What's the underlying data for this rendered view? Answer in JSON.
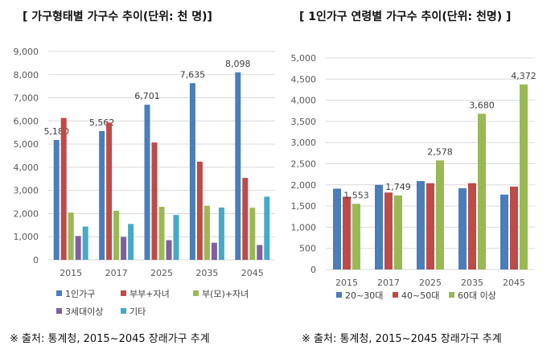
{
  "chart_data": [
    {
      "type": "bar",
      "title": "[ 가구형태별 가구수 추이(단위: 천 명)]",
      "categories": [
        "2015",
        "2017",
        "2025",
        "2035",
        "2045"
      ],
      "ylim": [
        0,
        9000
      ],
      "yticks": [
        "0",
        "1,000",
        "2,000",
        "3,000",
        "4,000",
        "5,000",
        "6,000",
        "7,000",
        "8,000",
        "9,000"
      ],
      "grid": true,
      "legend": "bottom",
      "series": [
        {
          "name": "1인가구",
          "color": "#4a7ebb",
          "values": [
            5180,
            5562,
            6701,
            7635,
            8098
          ],
          "labels": [
            "5,180",
            "5,562",
            "6,701",
            "7,635",
            "8,098"
          ]
        },
        {
          "name": "부부+자녀",
          "color": "#be4b48",
          "values": [
            6130,
            5930,
            5070,
            4240,
            3540
          ]
        },
        {
          "name": "부(모)+자녀",
          "color": "#98b954",
          "values": [
            2040,
            2120,
            2290,
            2340,
            2250
          ]
        },
        {
          "name": "3세대이상",
          "color": "#7d60a0",
          "values": [
            1030,
            990,
            850,
            740,
            640
          ]
        },
        {
          "name": "기타",
          "color": "#46aac5",
          "values": [
            1440,
            1550,
            1940,
            2260,
            2730
          ]
        }
      ],
      "note": "※ 출처: 통계청, 2015~2045 장래가구 추계"
    },
    {
      "type": "bar",
      "title": "[ 1인가구 연령별 가구수 추이(단위: 천명) ]",
      "categories": [
        "2015",
        "2017",
        "2025",
        "2035",
        "2045"
      ],
      "ylim": [
        0,
        5000
      ],
      "yticks": [
        "0",
        "500",
        "1,000",
        "1,500",
        "2,000",
        "2,500",
        "3,000",
        "3,500",
        "4,000",
        "4,500",
        "5,000"
      ],
      "grid": true,
      "legend": "bottom",
      "series": [
        {
          "name": "20~30대",
          "color": "#4a7ebb",
          "values": [
            1910,
            2000,
            2090,
            1920,
            1770
          ]
        },
        {
          "name": "40~50대",
          "color": "#be4b48",
          "values": [
            1720,
            1820,
            2040,
            2040,
            1960
          ]
        },
        {
          "name": "60대 이상",
          "color": "#98b954",
          "values": [
            1553,
            1749,
            2578,
            3680,
            4372
          ],
          "labels": [
            "1,553",
            "1,749",
            "2,578",
            "3,680",
            "4,372"
          ]
        }
      ],
      "note": "※ 출처: 통계청, 2015~2045 장래가구 추계"
    }
  ]
}
